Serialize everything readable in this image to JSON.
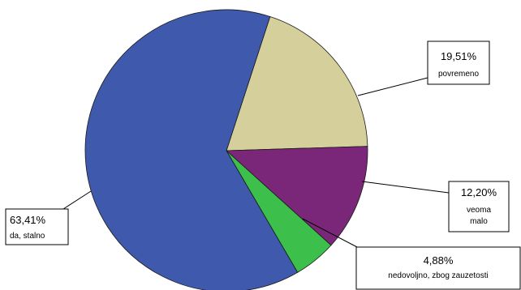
{
  "chart_data": {
    "type": "pie",
    "slices": [
      {
        "pct_label": "19,51%",
        "name_lines": [
          "povremeno"
        ],
        "value": 19.51,
        "color": "#d4cf9b"
      },
      {
        "pct_label": "12,20%",
        "name_lines": [
          "veoma",
          "malo"
        ],
        "value": 12.2,
        "color": "#7b2779"
      },
      {
        "pct_label": "4,88%",
        "name_lines": [
          "nedovoljno, zbog zauzetosti"
        ],
        "value": 4.88,
        "color": "#3cbf4b"
      },
      {
        "pct_label": "63,41%",
        "name_lines": [
          "da, stalno"
        ],
        "value": 63.41,
        "color": "#3f5aac"
      }
    ]
  }
}
